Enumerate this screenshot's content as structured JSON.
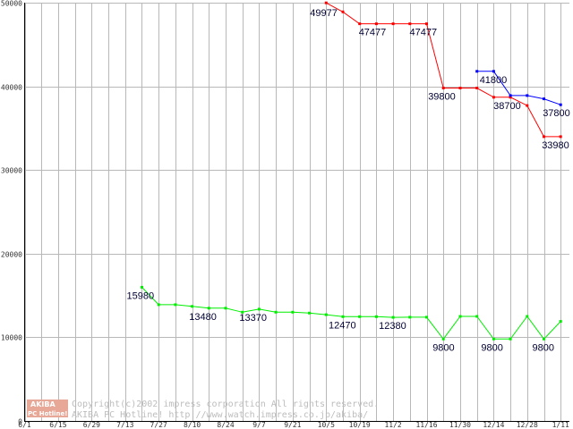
{
  "chart_data": {
    "type": "line",
    "title": "",
    "xlabel": "",
    "ylabel": "",
    "ylim": [
      0,
      50000
    ],
    "y_ticks": [
      0,
      10000,
      20000,
      30000,
      40000,
      50000
    ],
    "x_tick_labels": [
      "6/1",
      "6/15",
      "6/29",
      "7/13",
      "7/27",
      "8/10",
      "8/24",
      "9/7",
      "9/21",
      "10/5",
      "10/19",
      "11/2",
      "11/16",
      "11/30",
      "12/14",
      "12/28",
      "1/11"
    ],
    "x_weeks": [
      0,
      1,
      2,
      3,
      4,
      5,
      6,
      7,
      8,
      9,
      10,
      11,
      12,
      13,
      14,
      15,
      16,
      17,
      18,
      19,
      20,
      21,
      22,
      23,
      24,
      25,
      26,
      27,
      28,
      29,
      30,
      31,
      32
    ],
    "grid": true,
    "legend": "none",
    "series": [
      {
        "color": "#ff0000",
        "points": [
          [
            18,
            49977
          ],
          [
            19,
            48900
          ],
          [
            20,
            47477
          ],
          [
            21,
            47477
          ],
          [
            22,
            47477
          ],
          [
            23,
            47477
          ],
          [
            24,
            47477
          ],
          [
            25,
            39800
          ],
          [
            26,
            39800
          ],
          [
            27,
            39800
          ],
          [
            28,
            38700
          ],
          [
            29,
            38700
          ],
          [
            30,
            37700
          ],
          [
            31,
            33980
          ],
          [
            32,
            33980
          ]
        ]
      },
      {
        "color": "#0000ff",
        "points": [
          [
            27,
            41800
          ],
          [
            28,
            41800
          ],
          [
            29,
            38900
          ],
          [
            30,
            38900
          ],
          [
            31,
            38500
          ],
          [
            32,
            37800
          ]
        ]
      },
      {
        "color": "#00ee00",
        "points": [
          [
            7,
            15980
          ],
          [
            8,
            13900
          ],
          [
            9,
            13900
          ],
          [
            10,
            13700
          ],
          [
            11,
            13480
          ],
          [
            12,
            13480
          ],
          [
            13,
            13000
          ],
          [
            14,
            13370
          ],
          [
            15,
            13000
          ],
          [
            16,
            13000
          ],
          [
            17,
            12900
          ],
          [
            18,
            12700
          ],
          [
            19,
            12470
          ],
          [
            20,
            12470
          ],
          [
            21,
            12470
          ],
          [
            22,
            12380
          ],
          [
            23,
            12400
          ],
          [
            24,
            12400
          ],
          [
            25,
            9800
          ],
          [
            26,
            12500
          ],
          [
            27,
            12500
          ],
          [
            28,
            9800
          ],
          [
            29,
            9800
          ],
          [
            30,
            12500
          ],
          [
            31,
            9800
          ],
          [
            32,
            11900
          ]
        ]
      }
    ],
    "data_labels": [
      {
        "week": 18,
        "value": 49977,
        "text": "49977",
        "dx": -18,
        "dy": 15
      },
      {
        "week": 20,
        "value": 47477,
        "text": "47477",
        "dx": -1,
        "dy": 13
      },
      {
        "week": 24,
        "value": 47477,
        "text": "47477",
        "dx": -19,
        "dy": 13
      },
      {
        "week": 25,
        "value": 39800,
        "text": "39800",
        "dx": -17,
        "dy": 13
      },
      {
        "week": 27,
        "value": 41800,
        "text": "41800",
        "dx": 3,
        "dy": 13
      },
      {
        "week": 29,
        "value": 38700,
        "text": "38700",
        "dx": -19,
        "dy": 13
      },
      {
        "week": 32,
        "value": 37800,
        "text": "37800",
        "dx": -20,
        "dy": 13
      },
      {
        "week": 32,
        "value": 33980,
        "text": "33980",
        "dx": -21,
        "dy": 13
      },
      {
        "week": 7,
        "value": 15980,
        "text": "15980",
        "dx": -17,
        "dy": 13
      },
      {
        "week": 11,
        "value": 13480,
        "text": "13480",
        "dx": -22,
        "dy": 13
      },
      {
        "week": 14,
        "value": 13370,
        "text": "13370",
        "dx": -22,
        "dy": 13
      },
      {
        "week": 19,
        "value": 12470,
        "text": "12470",
        "dx": -16,
        "dy": 13
      },
      {
        "week": 22,
        "value": 12380,
        "text": "12380",
        "dx": -16,
        "dy": 13
      },
      {
        "week": 25,
        "value": 9800,
        "text": "9800",
        "dx": -12,
        "dy": 13
      },
      {
        "week": 28,
        "value": 9800,
        "text": "9800",
        "dx": -14,
        "dy": 13
      },
      {
        "week": 31,
        "value": 9800,
        "text": "9800",
        "dx": -13,
        "dy": 13
      }
    ]
  },
  "watermark": {
    "logo_top": "AKIBA",
    "logo_bottom": "PC Hotline!",
    "line1": "Copyright(c)2002 impress corporation All rights reserved.",
    "line2": "AKIBA PC Hotline! http://www.watch.impress.co.jp/akiba/"
  },
  "colors": {
    "grid": "#b8b8b8",
    "frame": "#000000",
    "marker": "#000000",
    "logo_fill": "#e8a898"
  }
}
